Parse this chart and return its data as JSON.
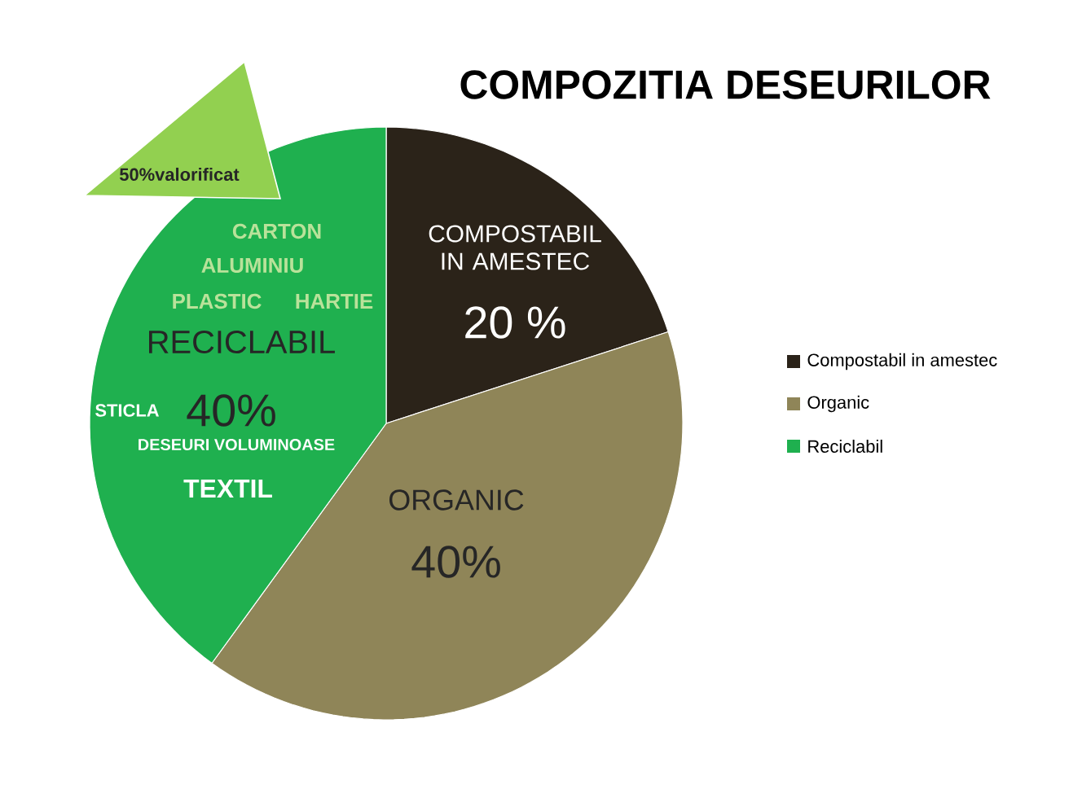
{
  "chart_data": {
    "type": "pie",
    "title": "COMPOZITIA DESEURILOR",
    "categories": [
      "Compostabil in amestec",
      "Organic",
      "Reciclabil"
    ],
    "values": [
      20,
      40,
      40
    ],
    "colors": [
      "#2b2319",
      "#8f8558",
      "#1fb04f"
    ],
    "value_labels": [
      "20 %",
      "40%",
      "40%"
    ],
    "legend": "right",
    "annotations": [
      "COMPOSTABIL IN AMESTEC",
      "ORGANIC",
      "RECICLABIL",
      "50%valorificat",
      "CARTON",
      "ALUMINIU",
      "PLASTIC",
      "HARTIE",
      "STICLA",
      "DESEURI VOLUMINOASE",
      "TEXTIL"
    ]
  }
}
